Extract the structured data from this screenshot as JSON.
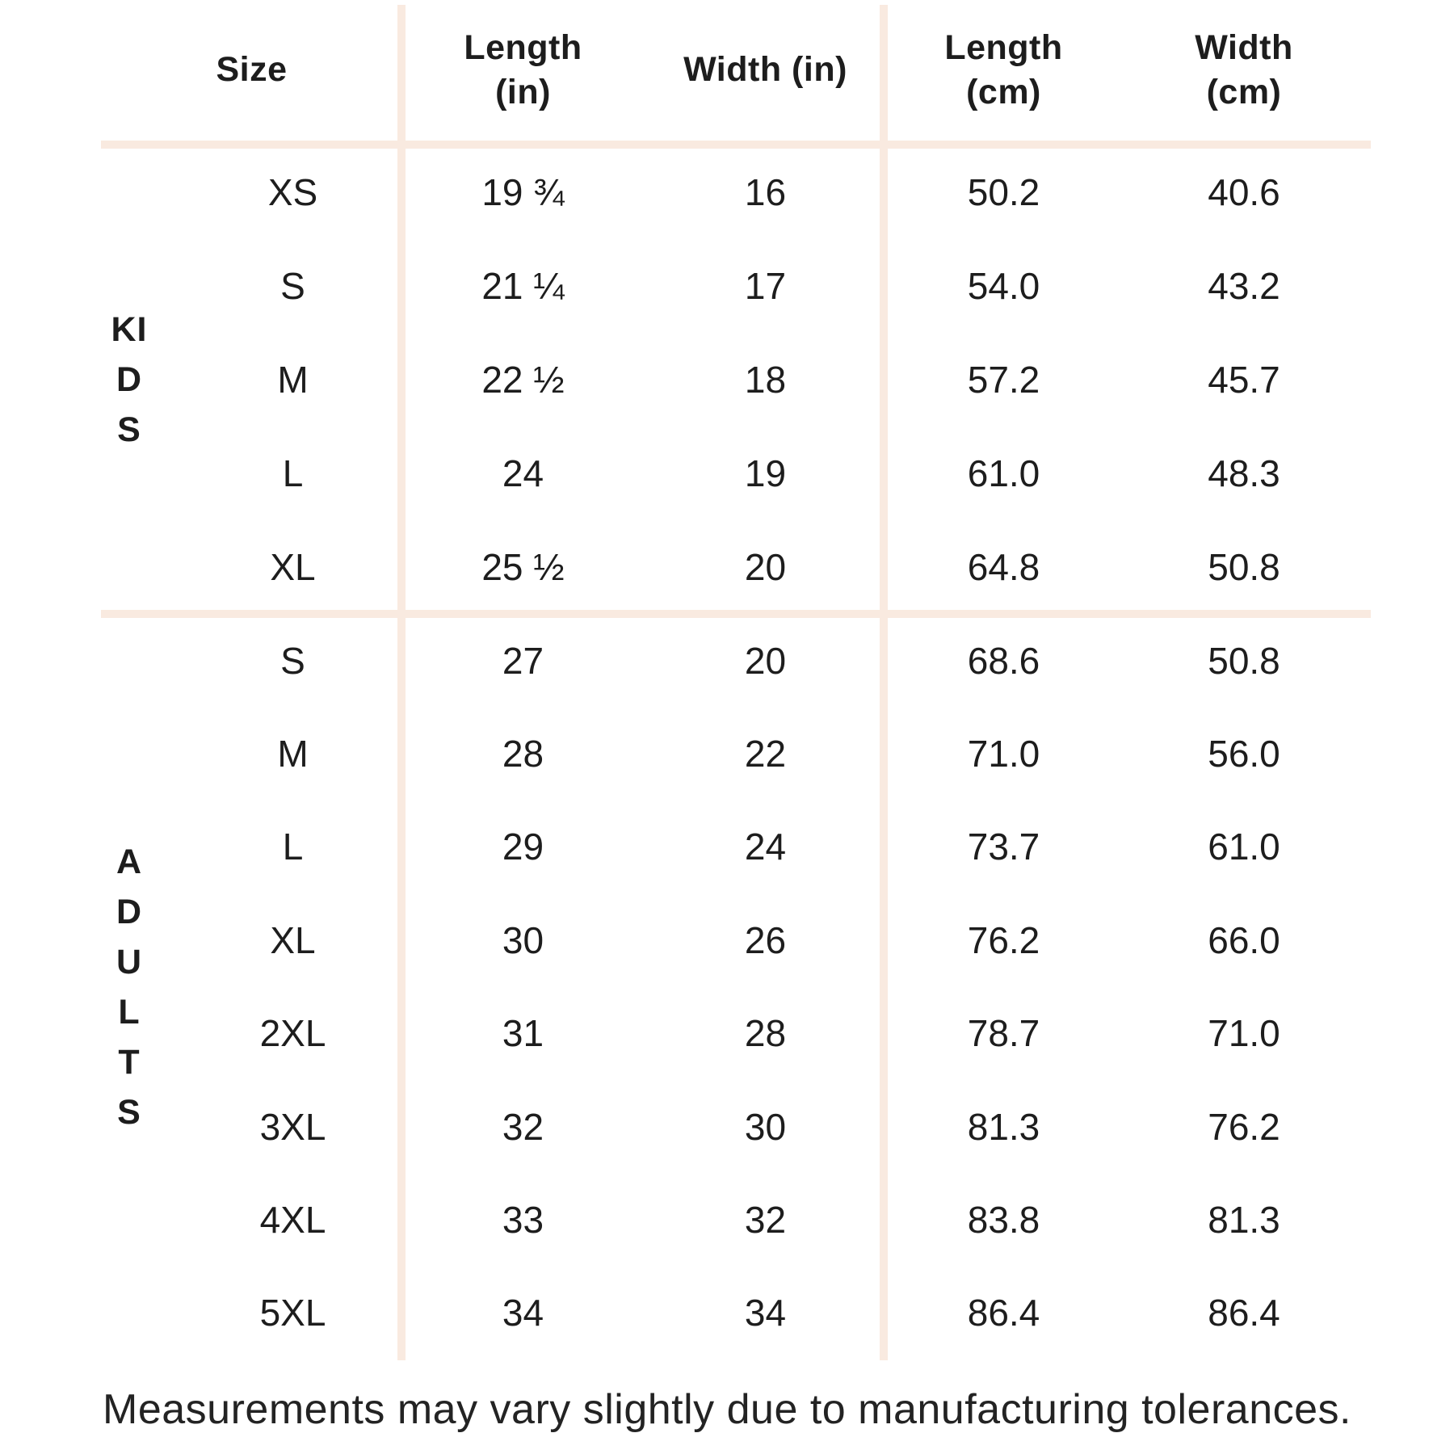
{
  "chart_data": {
    "type": "table",
    "title": "",
    "columns": [
      "Size",
      "Length (in)",
      "Width (in)",
      "Length (cm)",
      "Width (cm)"
    ],
    "groups": [
      {
        "label": "KIDS",
        "rows": [
          [
            "XS",
            "19 ¾",
            "16",
            "50.2",
            "40.6"
          ],
          [
            "S",
            "21 ¼",
            "17",
            "54.0",
            "43.2"
          ],
          [
            "M",
            "22 ½",
            "18",
            "57.2",
            "45.7"
          ],
          [
            "L",
            "24",
            "19",
            "61.0",
            "48.3"
          ],
          [
            "XL",
            "25 ½",
            "20",
            "64.8",
            "50.8"
          ]
        ]
      },
      {
        "label": "ADULTS",
        "rows": [
          [
            "S",
            "27",
            "20",
            "68.6",
            "50.8"
          ],
          [
            "M",
            "28",
            "22",
            "71.0",
            "56.0"
          ],
          [
            "L",
            "29",
            "24",
            "73.7",
            "61.0"
          ],
          [
            "XL",
            "30",
            "26",
            "76.2",
            "66.0"
          ],
          [
            "2XL",
            "31",
            "28",
            "78.7",
            "71.0"
          ],
          [
            "3XL",
            "32",
            "30",
            "81.3",
            "76.2"
          ],
          [
            "4XL",
            "33",
            "32",
            "83.8",
            "81.3"
          ],
          [
            "5XL",
            "34",
            "34",
            "86.4",
            "86.4"
          ]
        ]
      }
    ],
    "footnote": "Measurements may vary slightly due to manufacturing tolerances.",
    "legend_position": "none",
    "grid": "partial-peach-dividers"
  },
  "headers": {
    "size": "Size",
    "length_in": "Length\n(in)",
    "width_in": "Width (in)",
    "length_cm": "Length\n(cm)",
    "width_cm": "Width\n(cm)"
  },
  "colors": {
    "line": "#f9eae0",
    "text": "#1d1d1d",
    "background": "#ffffff"
  }
}
